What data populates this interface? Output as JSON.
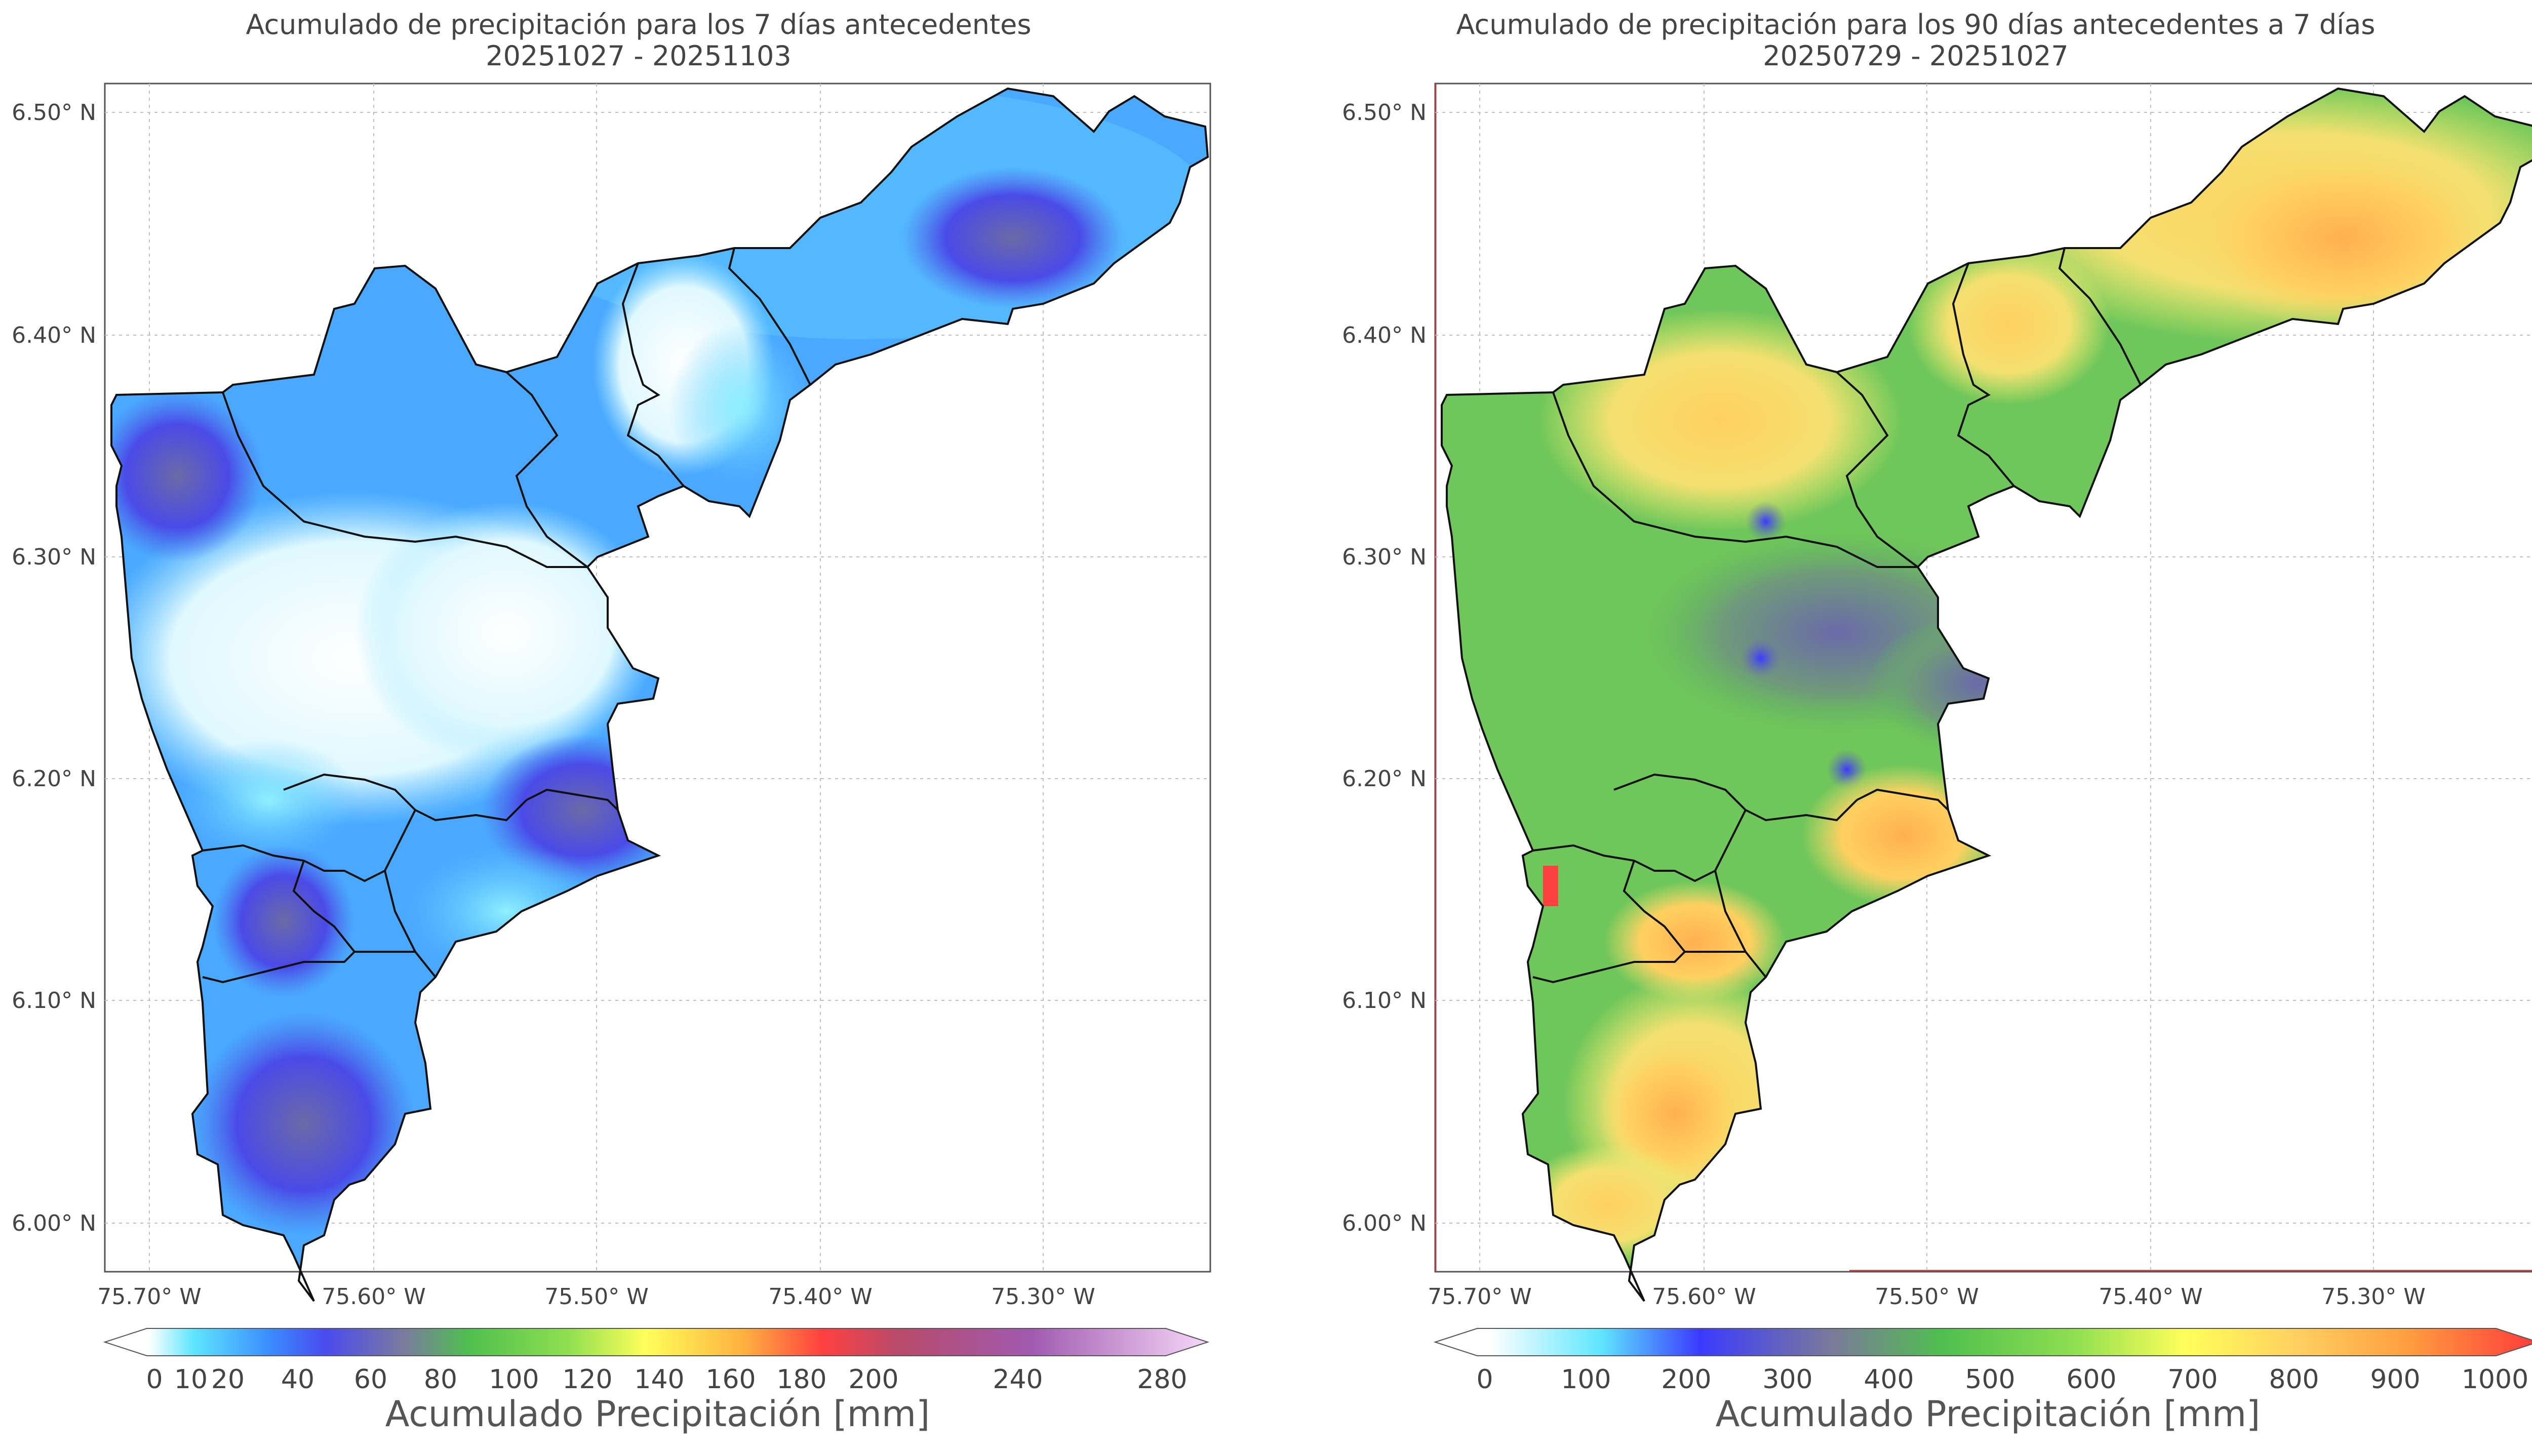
{
  "left_map": {
    "title_line1": "Acumulado de precipitación para los 7 días antecedentes",
    "title_line2": "20251027 - 20251103",
    "lat_labels": [
      "6.50° N",
      "6.40° N",
      "6.30° N",
      "6.20° N",
      "6.10° N",
      "6.00° N"
    ],
    "lon_labels": [
      "75.70° W",
      "75.60° W",
      "75.50° W",
      "75.40° W",
      "75.30° W"
    ],
    "colorbar_label": "Acumulado Precipitación [mm]",
    "colorbar_ticks": [
      "0",
      "10",
      "20",
      "40",
      "60",
      "80",
      "100",
      "120",
      "140",
      "160",
      "180",
      "200",
      "240",
      "280"
    ]
  },
  "right_map": {
    "title_line1": "Acumulado de precipitación para los 90 días antecedentes a 7 días",
    "title_line2": "20250729 - 20251027",
    "lat_labels": [
      "6.50° N",
      "6.40° N",
      "6.30° N",
      "6.20° N",
      "6.10° N",
      "6.00° N"
    ],
    "lon_labels": [
      "75.70° W",
      "75.60° W",
      "75.50° W",
      "75.40° W",
      "75.30° W"
    ],
    "colorbar_label": "Acumulado Precipitación [mm]",
    "colorbar_ticks": [
      "0",
      "100",
      "200",
      "300",
      "400",
      "500",
      "600",
      "700",
      "800",
      "900",
      "1000"
    ]
  },
  "colors": {
    "left_scale": [
      "#ffffff",
      "#5fe6ff",
      "#3a8cff",
      "#4a4af0",
      "#7a7aa0",
      "#4fbf4f",
      "#8fdf50",
      "#ffff5a",
      "#ffb040",
      "#ff4040",
      "#b84a6a",
      "#a05ab0",
      "#f6d8f8"
    ],
    "right_scale": [
      "#ffffff",
      "#5fe6ff",
      "#3a3aff",
      "#7a7a9a",
      "#4fbf4f",
      "#8fdf50",
      "#ffff5a",
      "#ffd060",
      "#ffa040",
      "#ff3a3a"
    ]
  }
}
